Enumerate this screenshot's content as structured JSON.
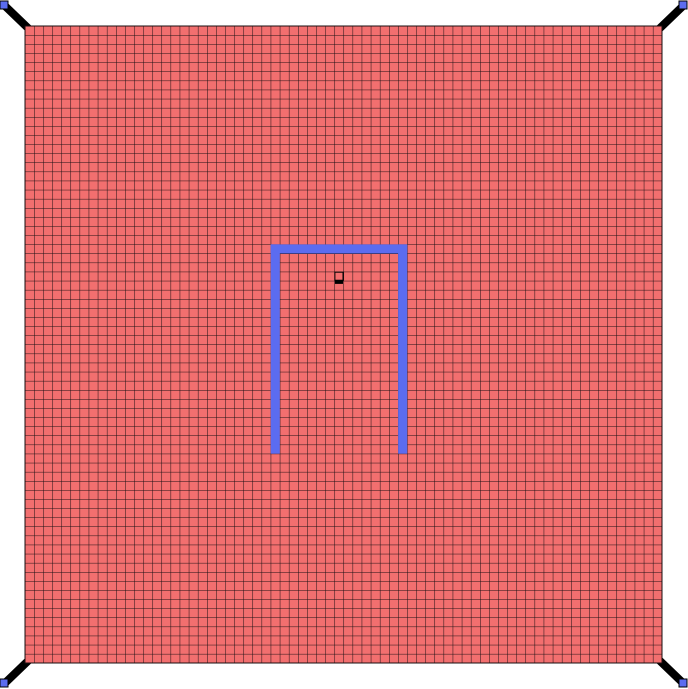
{
  "board": {
    "columns": 70,
    "rows": 70,
    "cell_fill": "#f26f6f",
    "grid_line_color": "#1a0f12",
    "wall_color": "#5b6cf0"
  },
  "corner_handles": {
    "arm_color": "#000000",
    "tip_color": "#5b6cf0",
    "items": [
      {
        "name": "corner-handle-top-left"
      },
      {
        "name": "corner-handle-top-right"
      },
      {
        "name": "corner-handle-bottom-left"
      },
      {
        "name": "corner-handle-bottom-right"
      }
    ]
  },
  "walls": [
    {
      "name": "wall-top",
      "from_cell": [
        27,
        24
      ],
      "to_cell": [
        41,
        24
      ]
    },
    {
      "name": "wall-left",
      "from_cell": [
        27,
        24
      ],
      "to_cell": [
        27,
        46
      ]
    },
    {
      "name": "wall-right",
      "from_cell": [
        41,
        24
      ],
      "to_cell": [
        41,
        46
      ]
    }
  ],
  "player": {
    "cell": [
      34,
      27
    ],
    "body_color": "#f26f6f",
    "base_color": "#000000"
  }
}
